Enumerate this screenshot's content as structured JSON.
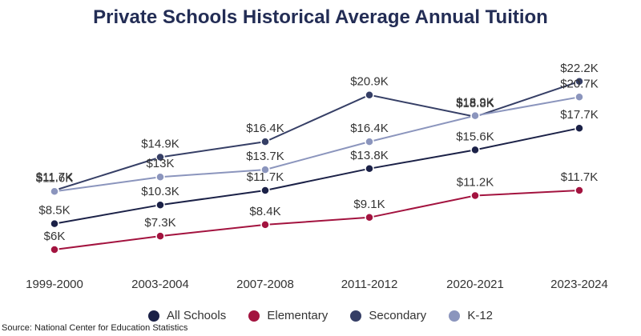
{
  "chart_data": {
    "type": "line",
    "title": "Private Schools Historical Average Annual Tuition",
    "categories": [
      "1999-2000",
      "2003-2004",
      "2007-2008",
      "2011-2012",
      "2020-2021",
      "2023-2024"
    ],
    "series": [
      {
        "name": "All Schools",
        "color": "#1b2147",
        "values": [
          8.5,
          10.3,
          11.7,
          13.8,
          15.6,
          17.7
        ],
        "labels": [
          "$8.5K",
          "$10.3K",
          "$11.7K",
          "$13.8K",
          "$15.6K",
          "$17.7K"
        ]
      },
      {
        "name": "Elementary",
        "color": "#a3133f",
        "values": [
          6,
          7.3,
          8.4,
          9.1,
          11.2,
          11.7
        ],
        "labels": [
          "$6K",
          "$7.3K",
          "$8.4K",
          "$9.1K",
          "$11.2K",
          "$11.7K"
        ]
      },
      {
        "name": "Secondary",
        "color": "#363f66",
        "values": [
          11.7,
          14.9,
          16.4,
          20.9,
          18.8,
          22.2
        ],
        "labels": [
          "$11.7K",
          "$14.9K",
          "$16.4K",
          "$20.9K",
          "$18.8K",
          "$22.2K"
        ]
      },
      {
        "name": "K-12",
        "color": "#8b95bd",
        "values": [
          11.6,
          13,
          13.7,
          16.4,
          18.9,
          20.7
        ],
        "labels": [
          "$11.6K",
          "$13K",
          "$13.7K",
          "$16.4K",
          "$18.9K",
          "$20.7K"
        ]
      }
    ],
    "unit": "thousands of USD",
    "ylim": [
      4.5,
      23.5
    ],
    "grid": false,
    "legend_position": "bottom"
  },
  "source": "Source: National Center for Education Statistics"
}
